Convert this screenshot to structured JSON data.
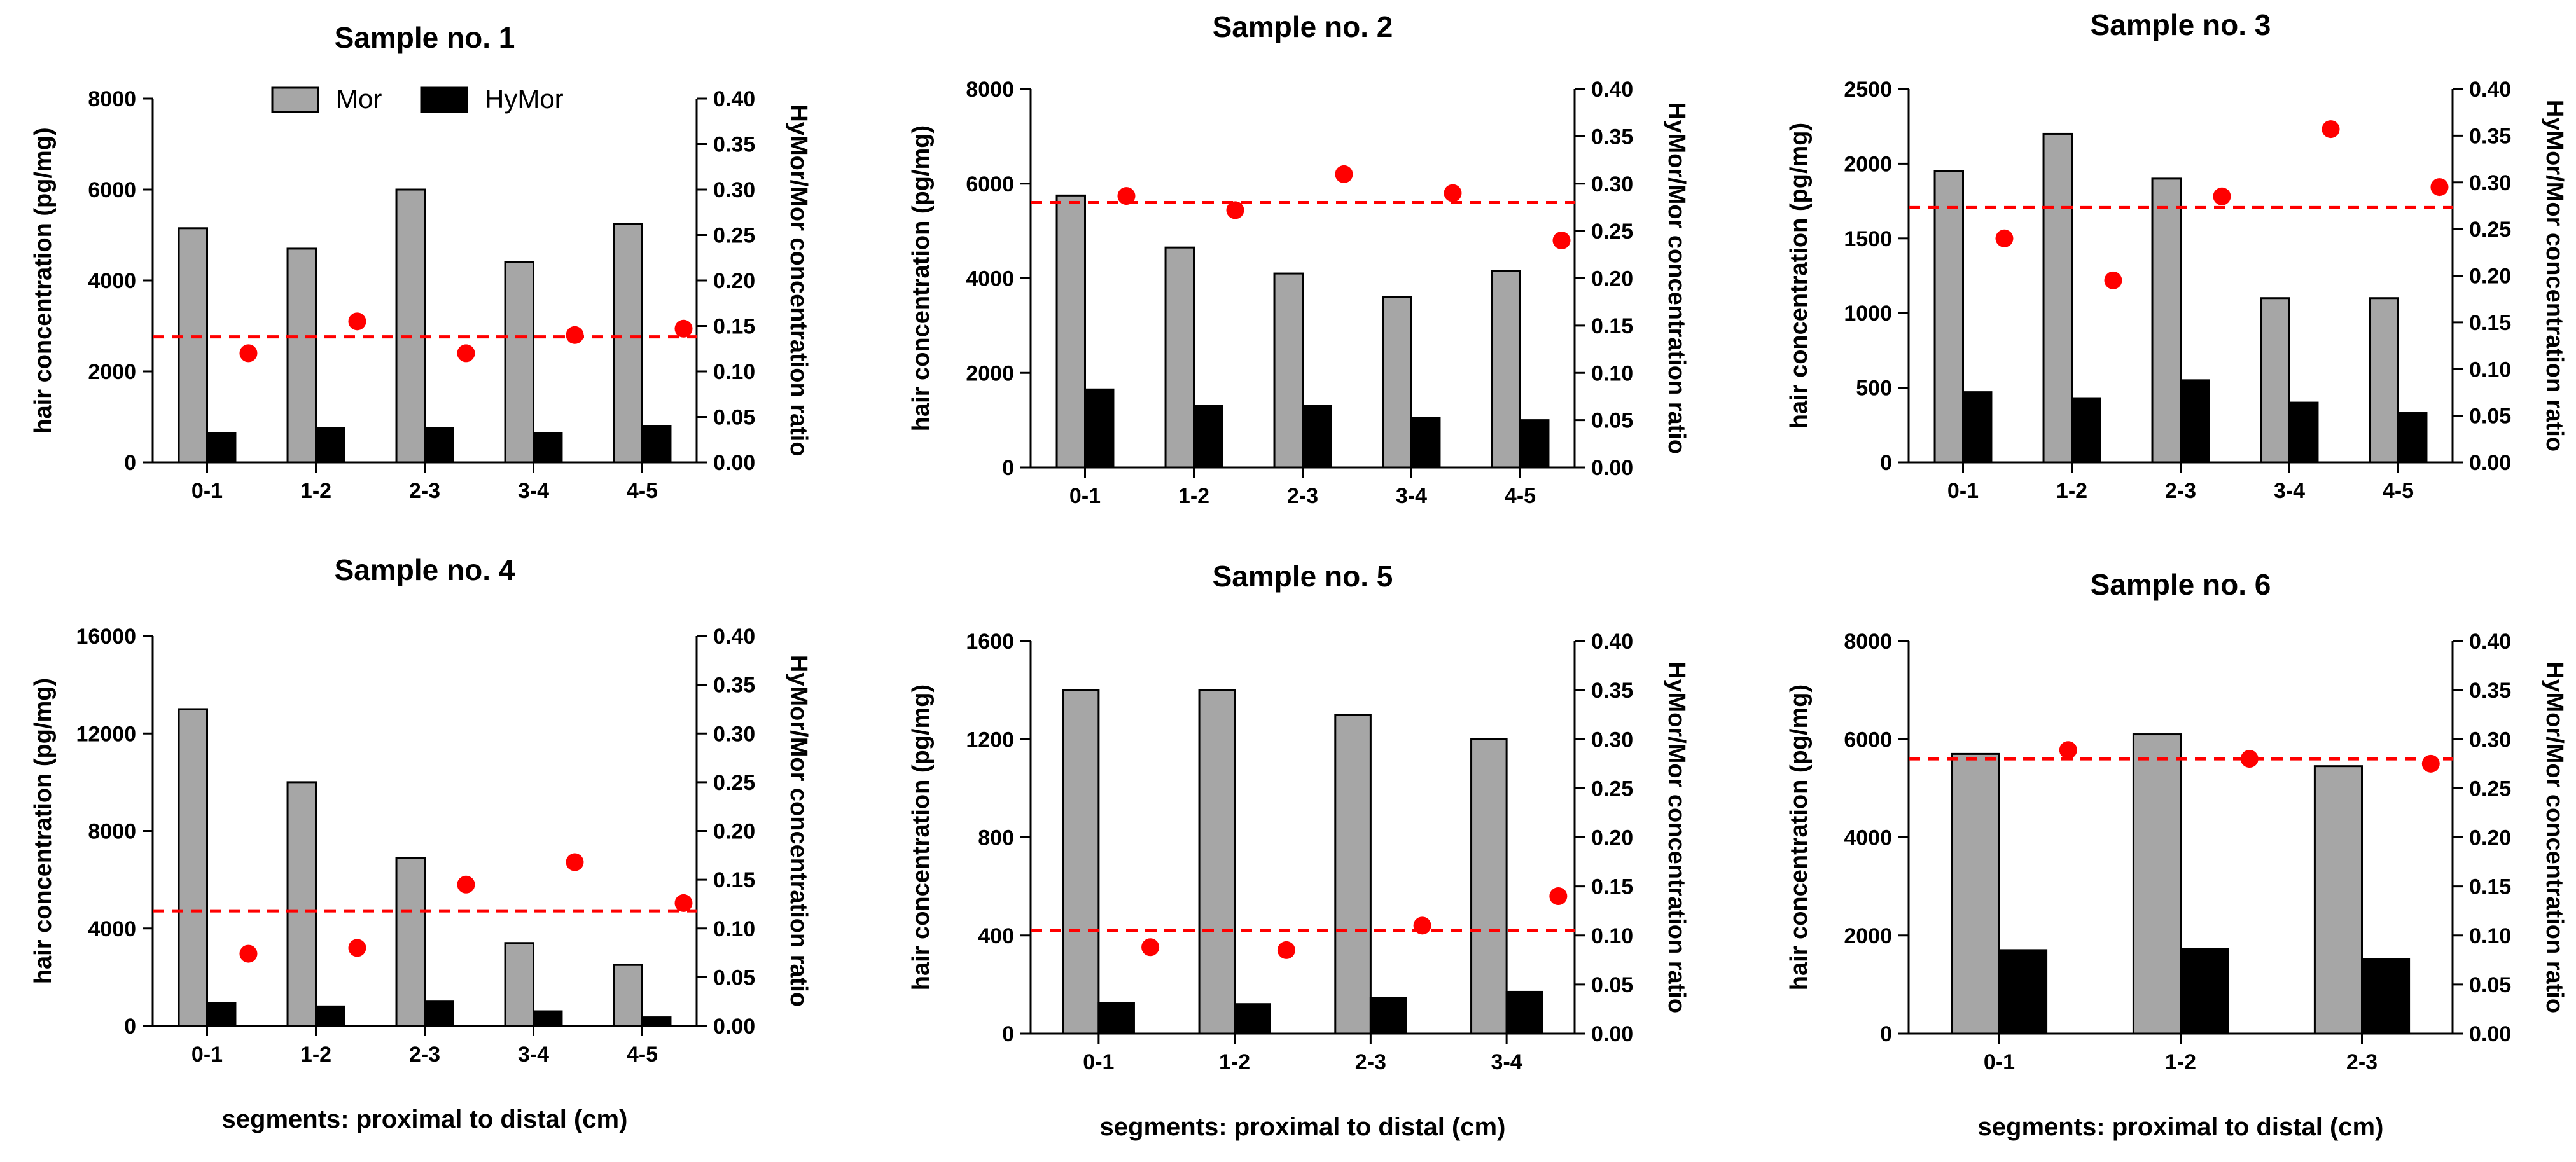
{
  "figure": {
    "xlabel": "segments: proximal to distal (cm)",
    "legend": {
      "items": [
        {
          "name": "Mor",
          "color": "#a6a6a6"
        },
        {
          "name": "HyMor",
          "color": "#000000"
        }
      ],
      "location": "top-center of Sample no. 1"
    }
  },
  "colors": {
    "mor": "#a6a6a6",
    "hymor": "#000000",
    "ratio": "#ff0000",
    "mean_line": "#ff0000"
  },
  "chart_data": [
    {
      "type": "bar",
      "title": "Sample no. 1",
      "categories": [
        "0-1",
        "1-2",
        "2-3",
        "3-4",
        "4-5"
      ],
      "series": [
        {
          "name": "Mor",
          "values": [
            5150,
            4700,
            6000,
            4400,
            5250
          ]
        },
        {
          "name": "HyMor",
          "values": [
            650,
            750,
            750,
            650,
            800
          ]
        }
      ],
      "ratio": {
        "name": "HyMor/Mor concentration ratio",
        "values": [
          0.12,
          0.155,
          0.12,
          0.14,
          0.147
        ],
        "mean": 0.138
      },
      "ylabel": "hair concentration (pg/mg)",
      "y2label": "HyMor/Mor concentration ratio",
      "ylim": [
        0,
        8000
      ],
      "yticks": [
        "0",
        "2000",
        "4000",
        "6000",
        "8000"
      ],
      "y2lim": [
        0,
        0.4
      ],
      "y2ticks": [
        "0.00",
        "0.05",
        "0.10",
        "0.15",
        "0.20",
        "0.25",
        "0.30",
        "0.35",
        "0.40"
      ],
      "xlabel": ""
    },
    {
      "type": "bar",
      "title": "Sample no. 2",
      "categories": [
        "0-1",
        "1-2",
        "2-3",
        "3-4",
        "4-5"
      ],
      "series": [
        {
          "name": "Mor",
          "values": [
            5750,
            4650,
            4100,
            3600,
            4150
          ]
        },
        {
          "name": "HyMor",
          "values": [
            1650,
            1300,
            1300,
            1050,
            1000
          ]
        }
      ],
      "ratio": {
        "name": "HyMor/Mor concentration ratio",
        "values": [
          0.287,
          0.272,
          0.31,
          0.29,
          0.24
        ],
        "mean": 0.28
      },
      "ylabel": "hair concentration (pg/mg)",
      "y2label": "HyMor/Mor concentration ratio",
      "ylim": [
        0,
        8000
      ],
      "yticks": [
        "0",
        "2000",
        "4000",
        "6000",
        "8000"
      ],
      "y2lim": [
        0,
        0.4
      ],
      "y2ticks": [
        "0.00",
        "0.05",
        "0.10",
        "0.15",
        "0.20",
        "0.25",
        "0.30",
        "0.35",
        "0.40"
      ],
      "xlabel": ""
    },
    {
      "type": "bar",
      "title": "Sample no. 3",
      "categories": [
        "0-1",
        "1-2",
        "2-3",
        "3-4",
        "4-5"
      ],
      "series": [
        {
          "name": "Mor",
          "values": [
            1950,
            2200,
            1900,
            1100,
            1100
          ]
        },
        {
          "name": "HyMor",
          "values": [
            470,
            430,
            550,
            400,
            330
          ]
        }
      ],
      "ratio": {
        "name": "HyMor/Mor concentration ratio",
        "values": [
          0.24,
          0.195,
          0.285,
          0.357,
          0.295
        ],
        "mean": 0.273
      },
      "ylabel": "hair concentration (pg/mg)",
      "y2label": "HyMor/Mor concentration ratio",
      "ylim": [
        0,
        2500
      ],
      "yticks": [
        "0",
        "500",
        "1000",
        "1500",
        "2000",
        "2500"
      ],
      "y2lim": [
        0,
        0.4
      ],
      "y2ticks": [
        "0.00",
        "0.05",
        "0.10",
        "0.15",
        "0.20",
        "0.25",
        "0.30",
        "0.35",
        "0.40"
      ],
      "xlabel": ""
    },
    {
      "type": "bar",
      "title": "Sample no. 4",
      "categories": [
        "0-1",
        "1-2",
        "2-3",
        "3-4",
        "4-5"
      ],
      "series": [
        {
          "name": "Mor",
          "values": [
            13000,
            10000,
            6900,
            3400,
            2500
          ]
        },
        {
          "name": "HyMor",
          "values": [
            950,
            800,
            1000,
            600,
            350
          ]
        }
      ],
      "ratio": {
        "name": "HyMor/Mor concentration ratio",
        "values": [
          0.074,
          0.08,
          0.145,
          0.168,
          0.126
        ],
        "mean": 0.118
      },
      "ylabel": "hair concentration (pg/mg)",
      "y2label": "HyMor/Mor concentration ratio",
      "ylim": [
        0,
        16000
      ],
      "yticks": [
        "0",
        "4000",
        "8000",
        "12000",
        "16000"
      ],
      "y2lim": [
        0,
        0.4
      ],
      "y2ticks": [
        "0.00",
        "0.05",
        "0.10",
        "0.15",
        "0.20",
        "0.25",
        "0.30",
        "0.35",
        "0.40"
      ],
      "xlabel": "segments: proximal to distal (cm)"
    },
    {
      "type": "bar",
      "title": "Sample no. 5",
      "categories": [
        "0-1",
        "1-2",
        "2-3",
        "3-4"
      ],
      "series": [
        {
          "name": "Mor",
          "values": [
            1400,
            1400,
            1300,
            1200
          ]
        },
        {
          "name": "HyMor",
          "values": [
            125,
            120,
            145,
            170
          ]
        }
      ],
      "ratio": {
        "name": "HyMor/Mor concentration ratio",
        "values": [
          0.088,
          0.085,
          0.11,
          0.14
        ],
        "mean": 0.105
      },
      "ylabel": "hair concentration (pg/mg)",
      "y2label": "HyMor/Mor concentration ratio",
      "ylim": [
        0,
        1600
      ],
      "yticks": [
        "0",
        "400",
        "800",
        "1200",
        "1600"
      ],
      "y2lim": [
        0,
        0.4
      ],
      "y2ticks": [
        "0.00",
        "0.05",
        "0.10",
        "0.15",
        "0.20",
        "0.25",
        "0.30",
        "0.35",
        "0.40"
      ],
      "xlabel": "segments: proximal to distal (cm)"
    },
    {
      "type": "bar",
      "title": "Sample no. 6",
      "categories": [
        "0-1",
        "1-2",
        "2-3"
      ],
      "series": [
        {
          "name": "Mor",
          "values": [
            5700,
            6100,
            5450
          ]
        },
        {
          "name": "HyMor",
          "values": [
            1700,
            1720,
            1520
          ]
        }
      ],
      "ratio": {
        "name": "HyMor/Mor concentration ratio",
        "values": [
          0.289,
          0.28,
          0.275
        ],
        "mean": 0.28
      },
      "ylabel": "hair concentration (pg/mg)",
      "y2label": "HyMor/Mor concentration ratio",
      "ylim": [
        0,
        8000
      ],
      "yticks": [
        "0",
        "2000",
        "4000",
        "6000",
        "8000"
      ],
      "y2lim": [
        0,
        0.4
      ],
      "y2ticks": [
        "0.00",
        "0.05",
        "0.10",
        "0.15",
        "0.20",
        "0.25",
        "0.30",
        "0.35",
        "0.40"
      ],
      "xlabel": "segments: proximal to distal (cm)"
    }
  ]
}
